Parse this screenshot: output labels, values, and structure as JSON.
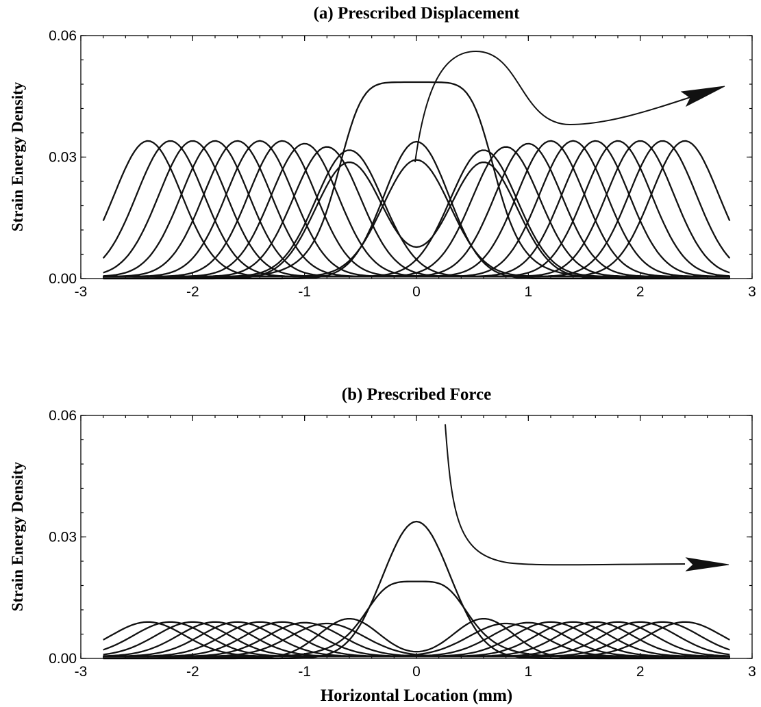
{
  "chart_data": [
    {
      "type": "line",
      "title": "(a) Prescribed Displacement",
      "xlabel": "",
      "ylabel": "Strain Energy Density",
      "xlim": [
        -3,
        3
      ],
      "ylim": [
        0,
        0.06
      ],
      "x_ticks": [
        "-3",
        "-2",
        "-1",
        "0",
        "1",
        "2",
        "3"
      ],
      "y_ticks": [
        "0.00",
        "0.03",
        "0.06"
      ],
      "grid": false,
      "curve_amplitude": 0.0335,
      "curve_centers": [
        -2.4,
        -2.2,
        -2.0,
        -1.8,
        -1.6,
        -1.4,
        -1.2,
        -1.0,
        -0.8,
        -0.6,
        0.0,
        0.6,
        0.8,
        1.0,
        1.2,
        1.4,
        1.6,
        1.8,
        2.0,
        2.2,
        2.4
      ],
      "central_curves": [
        {
          "peak": 0.0485,
          "shape": "flat-top plateau from -0.4 to 0.4"
        },
        {
          "peak": 0.0338,
          "shape": "single peak at 0"
        },
        {
          "peak": 0.0105,
          "shape": "dip at 0, peaks 0.029 at ±0.6"
        }
      ],
      "x_range": [
        -2.8,
        2.8
      ],
      "annotation": "arrow indicating sequence of curves"
    },
    {
      "type": "line",
      "title": "(b) Prescribed Force",
      "xlabel": "Horizontal Location (mm)",
      "ylabel": "Strain Energy Density",
      "xlim": [
        -3,
        3
      ],
      "ylim": [
        0,
        0.06
      ],
      "x_ticks": [
        "-3",
        "-2",
        "-1",
        "0",
        "1",
        "2",
        "3"
      ],
      "y_ticks": [
        "0.00",
        "0.03",
        "0.06"
      ],
      "grid": false,
      "curve_amplitude": 0.0085,
      "curve_centers": [
        -2.4,
        -2.2,
        -2.0,
        -1.8,
        -1.6,
        -1.4,
        -1.2,
        -1.0,
        -0.8,
        0.8,
        1.0,
        1.2,
        1.4,
        1.6,
        1.8,
        2.0,
        2.2,
        2.4
      ],
      "central_curves": [
        {
          "peak": 0.0338,
          "shape": "single peak at 0"
        },
        {
          "peak": 0.019,
          "shape": "flat-top plateau"
        },
        {
          "peak": 0.0035,
          "shape": "dip at 0, peaks 0.0098 at ±0.6"
        }
      ],
      "x_range": [
        -2.8,
        2.8
      ],
      "annotation": "arrow indicating sequence of curves"
    }
  ]
}
